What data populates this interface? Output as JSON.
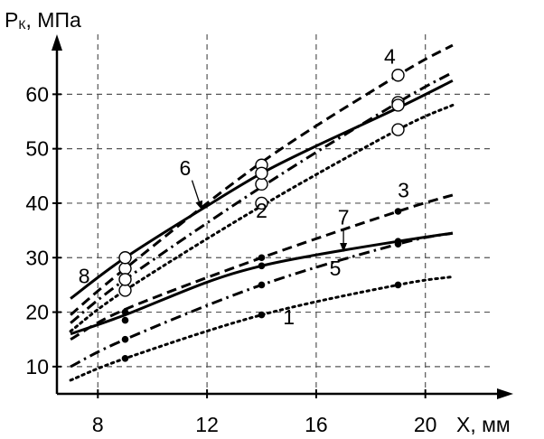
{
  "chart_data": {
    "type": "line",
    "xlabel": "X, мм",
    "ylabel": "Pк, МПа",
    "ylabel_main": "P",
    "ylabel_sub": "К",
    "ylabel_unit": ", МПа",
    "xlim": [
      6.5,
      22
    ],
    "ylim": [
      5,
      67
    ],
    "x_ticks": [
      8,
      12,
      16,
      20
    ],
    "x_tick_labels": [
      "8",
      "12",
      "16",
      "20"
    ],
    "y_ticks": [
      10,
      20,
      30,
      40,
      50,
      60
    ],
    "y_tick_labels": [
      "10",
      "20",
      "30",
      "40",
      "50",
      "60"
    ],
    "grid": true,
    "legend": "none",
    "series": [
      {
        "label": "1",
        "style": "dotted",
        "x": [
          7,
          9,
          14,
          19,
          21
        ],
        "y": [
          7.5,
          11.5,
          19.5,
          25,
          26.5
        ],
        "markers": "filled",
        "marker_x": [
          9,
          14,
          19
        ],
        "marker_y": [
          11.5,
          19.5,
          25
        ]
      },
      {
        "label": "2",
        "style": "dotted",
        "x": [
          7,
          9,
          14,
          19,
          21
        ],
        "y": [
          16.5,
          24,
          39.5,
          53.5,
          58
        ],
        "markers": "open",
        "marker_x": [
          9,
          14,
          19
        ],
        "marker_y": [
          24,
          40,
          53.5
        ]
      },
      {
        "label": "3",
        "style": "dashed",
        "x": [
          7,
          9,
          14,
          19,
          21
        ],
        "y": [
          15,
          20.5,
          30,
          38.5,
          41.5
        ],
        "markers": "filled",
        "marker_x": [
          9,
          14,
          19
        ],
        "marker_y": [
          20,
          30,
          38.5
        ]
      },
      {
        "label": "4",
        "style": "dashed",
        "x": [
          7,
          9,
          14,
          19,
          21
        ],
        "y": [
          19.5,
          28,
          47.5,
          63.5,
          69
        ],
        "markers": "open",
        "marker_x": [
          9,
          14,
          19
        ],
        "marker_y": [
          28,
          47,
          63.5
        ]
      },
      {
        "label": "5",
        "style": "dashdot",
        "x": [
          7,
          9,
          14,
          19,
          21
        ],
        "y": [
          10,
          15,
          25,
          32.5,
          34.5
        ],
        "markers": "filled",
        "marker_x": [
          9,
          14,
          19
        ],
        "marker_y": [
          15,
          25,
          32.5
        ]
      },
      {
        "label": "6",
        "style": "dashdot",
        "x": [
          7,
          9,
          14,
          19,
          21
        ],
        "y": [
          18,
          26,
          43,
          58.5,
          64
        ],
        "markers": "open",
        "marker_x": [
          9,
          14,
          19
        ],
        "marker_y": [
          26,
          43.5,
          58.5
        ]
      },
      {
        "label": "7",
        "style": "solid",
        "x": [
          7,
          9,
          12,
          14,
          16,
          19,
          21
        ],
        "y": [
          16,
          19.5,
          25.5,
          28.5,
          30.5,
          33,
          34.5
        ],
        "markers": "filled",
        "marker_x": [
          9,
          14,
          19
        ],
        "marker_y": [
          18.5,
          28.5,
          33
        ]
      },
      {
        "label": "8",
        "style": "solid",
        "x": [
          7,
          9,
          12,
          14,
          16,
          19,
          21
        ],
        "y": [
          22.5,
          30,
          39.5,
          45.5,
          50.5,
          57.5,
          62.5
        ],
        "markers": "open",
        "marker_x": [
          9,
          14,
          19
        ],
        "marker_y": [
          30,
          45.5,
          58
        ]
      }
    ],
    "annotations": [
      {
        "text": "1"
      },
      {
        "text": "2"
      },
      {
        "text": "3"
      },
      {
        "text": "4"
      },
      {
        "text": "5"
      },
      {
        "text": "6",
        "arrow": true
      },
      {
        "text": "7",
        "arrow": true
      },
      {
        "text": "8"
      }
    ]
  }
}
